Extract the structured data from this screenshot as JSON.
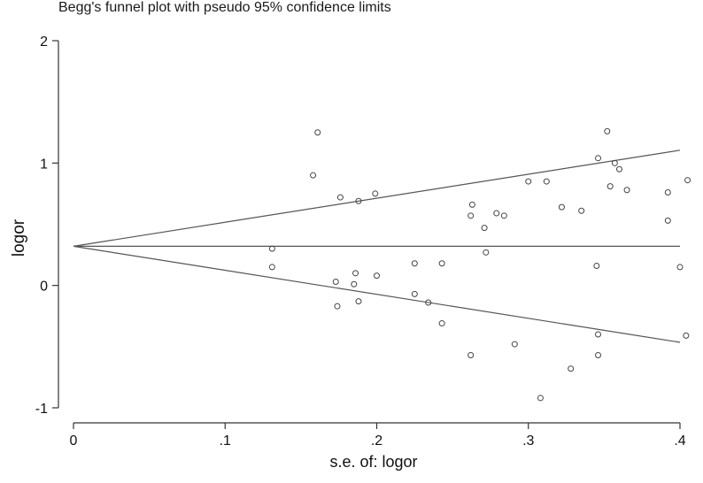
{
  "chart_data": {
    "type": "scatter",
    "title": "Begg's funnel plot with pseudo 95% confidence limits",
    "xlabel": "s.e. of: logor",
    "ylabel": "logor",
    "xlim": [
      0,
      0.4
    ],
    "ylim": [
      -1,
      2
    ],
    "x_ticks": [
      {
        "value": 0,
        "label": "0"
      },
      {
        "value": 0.1,
        "label": ".1"
      },
      {
        "value": 0.2,
        "label": ".2"
      },
      {
        "value": 0.3,
        "label": ".3"
      },
      {
        "value": 0.4,
        "label": ".4"
      }
    ],
    "y_ticks": [
      {
        "value": -1,
        "label": "-1"
      },
      {
        "value": 0,
        "label": "0"
      },
      {
        "value": 1,
        "label": "1"
      },
      {
        "value": 2,
        "label": "2"
      }
    ],
    "pooled_estimate": 0.32,
    "confidence_lines": {
      "upper": [
        [
          0,
          0.32
        ],
        [
          0.4,
          1.105
        ]
      ],
      "lower": [
        [
          0,
          0.32
        ],
        [
          0.4,
          -0.465
        ]
      ]
    },
    "points": [
      {
        "x": 0.131,
        "y": 0.3
      },
      {
        "x": 0.131,
        "y": 0.15
      },
      {
        "x": 0.158,
        "y": 0.9
      },
      {
        "x": 0.161,
        "y": 1.25
      },
      {
        "x": 0.173,
        "y": 0.03
      },
      {
        "x": 0.174,
        "y": -0.17
      },
      {
        "x": 0.176,
        "y": 0.72
      },
      {
        "x": 0.185,
        "y": 0.01
      },
      {
        "x": 0.186,
        "y": 0.1
      },
      {
        "x": 0.188,
        "y": 0.69
      },
      {
        "x": 0.188,
        "y": -0.13
      },
      {
        "x": 0.199,
        "y": 0.75
      },
      {
        "x": 0.2,
        "y": 0.08
      },
      {
        "x": 0.225,
        "y": 0.18
      },
      {
        "x": 0.225,
        "y": -0.07
      },
      {
        "x": 0.234,
        "y": -0.14
      },
      {
        "x": 0.243,
        "y": 0.18
      },
      {
        "x": 0.243,
        "y": -0.31
      },
      {
        "x": 0.262,
        "y": 0.57
      },
      {
        "x": 0.263,
        "y": 0.66
      },
      {
        "x": 0.262,
        "y": -0.57
      },
      {
        "x": 0.271,
        "y": 0.47
      },
      {
        "x": 0.272,
        "y": 0.27
      },
      {
        "x": 0.279,
        "y": 0.59
      },
      {
        "x": 0.284,
        "y": 0.57
      },
      {
        "x": 0.291,
        "y": -0.48
      },
      {
        "x": 0.3,
        "y": 0.85
      },
      {
        "x": 0.308,
        "y": -0.92
      },
      {
        "x": 0.312,
        "y": 0.85
      },
      {
        "x": 0.322,
        "y": 0.64
      },
      {
        "x": 0.328,
        "y": -0.68
      },
      {
        "x": 0.335,
        "y": 0.61
      },
      {
        "x": 0.345,
        "y": 0.16
      },
      {
        "x": 0.346,
        "y": 1.04
      },
      {
        "x": 0.346,
        "y": -0.4
      },
      {
        "x": 0.346,
        "y": -0.57
      },
      {
        "x": 0.352,
        "y": 1.26
      },
      {
        "x": 0.354,
        "y": 0.81
      },
      {
        "x": 0.357,
        "y": 1.0
      },
      {
        "x": 0.36,
        "y": 0.95
      },
      {
        "x": 0.365,
        "y": 0.78
      },
      {
        "x": 0.392,
        "y": 0.76
      },
      {
        "x": 0.392,
        "y": 0.53
      },
      {
        "x": 0.4,
        "y": 0.15
      },
      {
        "x": 0.405,
        "y": 0.86
      },
      {
        "x": 0.404,
        "y": -0.41
      }
    ],
    "grid": false,
    "legend": "none"
  }
}
